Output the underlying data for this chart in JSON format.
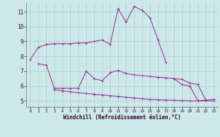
{
  "x": [
    0,
    1,
    2,
    3,
    4,
    5,
    6,
    7,
    8,
    9,
    10,
    11,
    12,
    13,
    14,
    15,
    16,
    17,
    18,
    19,
    20,
    21,
    22,
    23
  ],
  "y1": [
    7.8,
    8.6,
    8.8,
    8.85,
    8.85,
    8.85,
    8.9,
    8.9,
    9.0,
    9.1,
    8.8,
    11.2,
    10.3,
    11.35,
    11.1,
    10.6,
    9.1,
    7.6,
    null,
    null,
    null,
    null,
    null,
    null
  ],
  "y2": [
    null,
    7.5,
    7.4,
    5.85,
    5.85,
    5.85,
    5.85,
    7.0,
    6.5,
    6.35,
    6.9,
    7.05,
    6.85,
    6.75,
    6.7,
    6.65,
    6.6,
    6.55,
    6.5,
    6.45,
    6.2,
    6.1,
    5.05,
    5.1
  ],
  "y3": [
    null,
    null,
    null,
    null,
    null,
    null,
    null,
    null,
    null,
    null,
    null,
    null,
    null,
    null,
    null,
    null,
    null,
    null,
    6.5,
    6.1,
    6.0,
    5.0,
    5.05,
    null
  ],
  "y4": [
    null,
    null,
    null,
    5.75,
    5.68,
    5.62,
    5.55,
    5.5,
    5.45,
    5.4,
    5.35,
    5.3,
    5.25,
    5.2,
    5.15,
    5.1,
    5.08,
    5.06,
    5.04,
    5.02,
    5.0,
    5.0,
    5.0,
    5.0
  ],
  "ylim": [
    4.6,
    11.6
  ],
  "xlim": [
    -0.5,
    23.5
  ],
  "yticks": [
    5,
    6,
    7,
    8,
    9,
    10,
    11
  ],
  "xticks": [
    0,
    1,
    2,
    3,
    4,
    5,
    6,
    7,
    8,
    9,
    10,
    11,
    12,
    13,
    14,
    15,
    16,
    17,
    18,
    19,
    20,
    21,
    22,
    23
  ],
  "xlabel": "Windchill (Refroidissement éolien,°C)",
  "bg_color": "#cce8e8",
  "grid_color": "#aacccc",
  "line_color": "#993399"
}
